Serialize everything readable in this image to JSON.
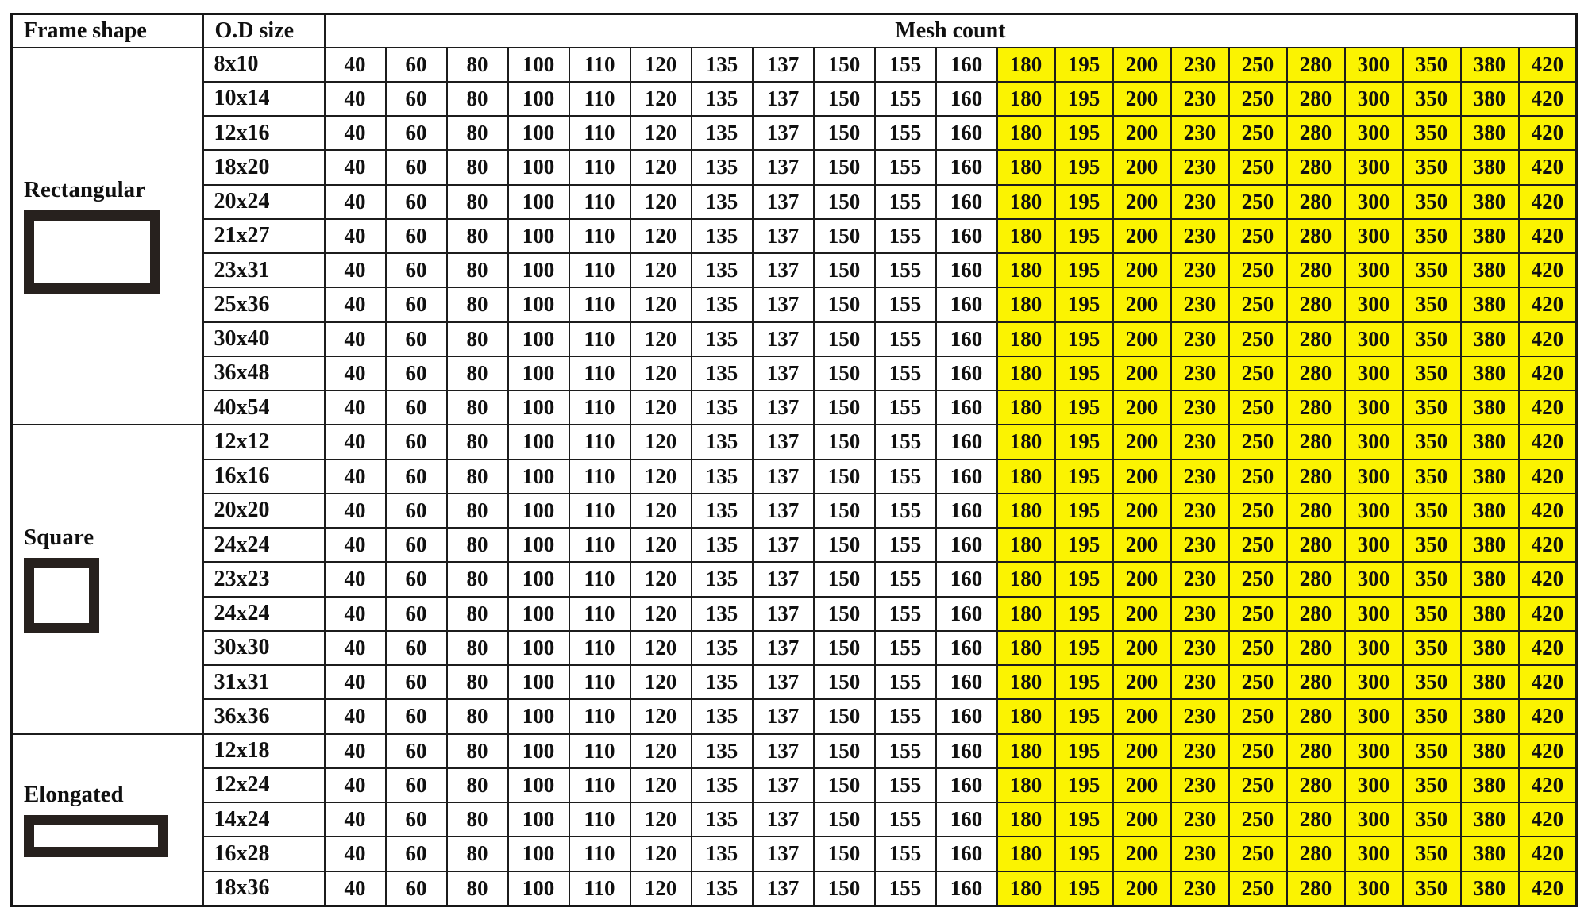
{
  "header": {
    "frame_shape": "Frame shape",
    "od_size": "O.D size",
    "mesh_count": "Mesh count"
  },
  "mesh_columns": {
    "standard": [
      "40",
      "60",
      "80",
      "100",
      "110",
      "120",
      "135",
      "137",
      "150",
      "155",
      "160"
    ],
    "highlighted": [
      "180",
      "195",
      "200",
      "230",
      "250",
      "280",
      "300",
      "350",
      "380",
      "420"
    ]
  },
  "sections": [
    {
      "shape": "Rectangular",
      "icon": "rectangle-icon",
      "sizes": [
        "8x10",
        "10x14",
        "12x16",
        "18x20",
        "20x24",
        "21x27",
        "23x31",
        "25x36",
        "30x40",
        "36x48",
        "40x54"
      ]
    },
    {
      "shape": "Square",
      "icon": "square-icon",
      "sizes": [
        "12x12",
        "16x16",
        "20x20",
        "24x24",
        "23x23",
        "24x24",
        "30x30",
        "31x31",
        "36x36"
      ]
    },
    {
      "shape": "Elongated",
      "icon": "elongated-rectangle-icon",
      "sizes": [
        "12x18",
        "12x24",
        "14x24",
        "16x28",
        "18x36"
      ]
    }
  ],
  "colors": {
    "highlight_yellow": "#FBF301",
    "grid_border": "#1c1c1c",
    "text": "#101010",
    "icon_border": "#27211e"
  }
}
